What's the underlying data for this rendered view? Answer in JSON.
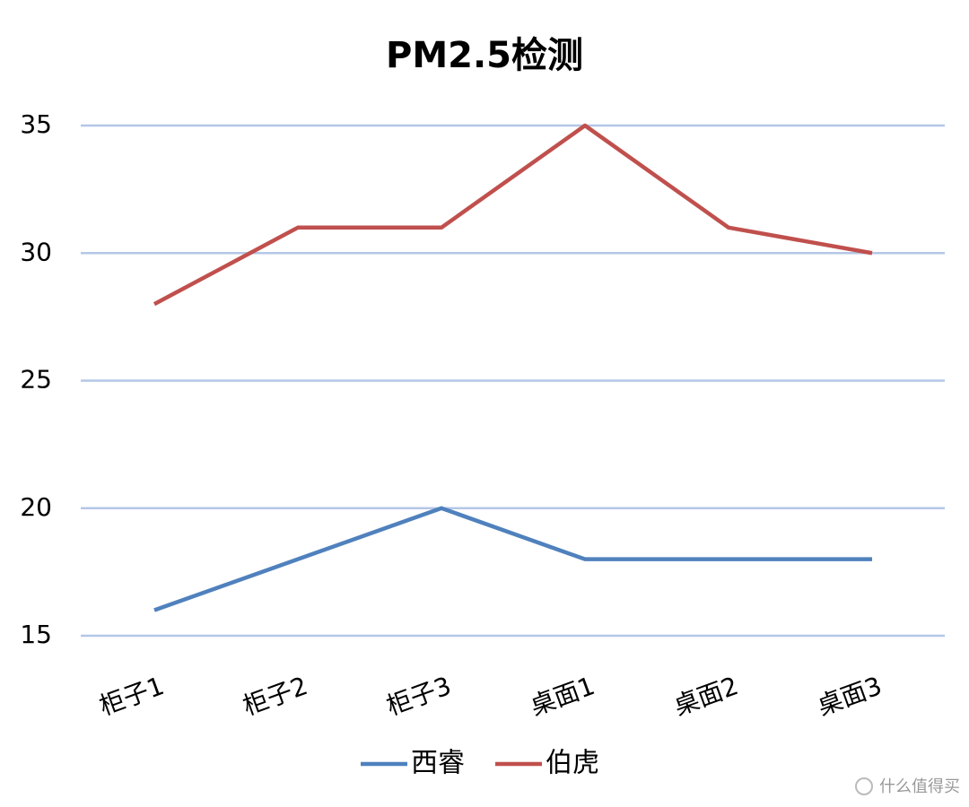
{
  "chart_data": {
    "type": "line",
    "title": "PM2.5检测",
    "categories": [
      "柜子1",
      "柜子2",
      "柜子3",
      "桌面1",
      "桌面2",
      "桌面3"
    ],
    "series": [
      {
        "name": "西睿",
        "color": "#4f81bd",
        "values": [
          16,
          18,
          20,
          18,
          18,
          18
        ]
      },
      {
        "name": "伯虎",
        "color": "#c0504d",
        "values": [
          28,
          31,
          31,
          35,
          31,
          30
        ]
      }
    ],
    "ylim": [
      15,
      35
    ],
    "yticks": [
      15,
      20,
      25,
      30,
      35
    ],
    "grid": true,
    "legend": "bottom"
  },
  "watermark": "什么值得买"
}
